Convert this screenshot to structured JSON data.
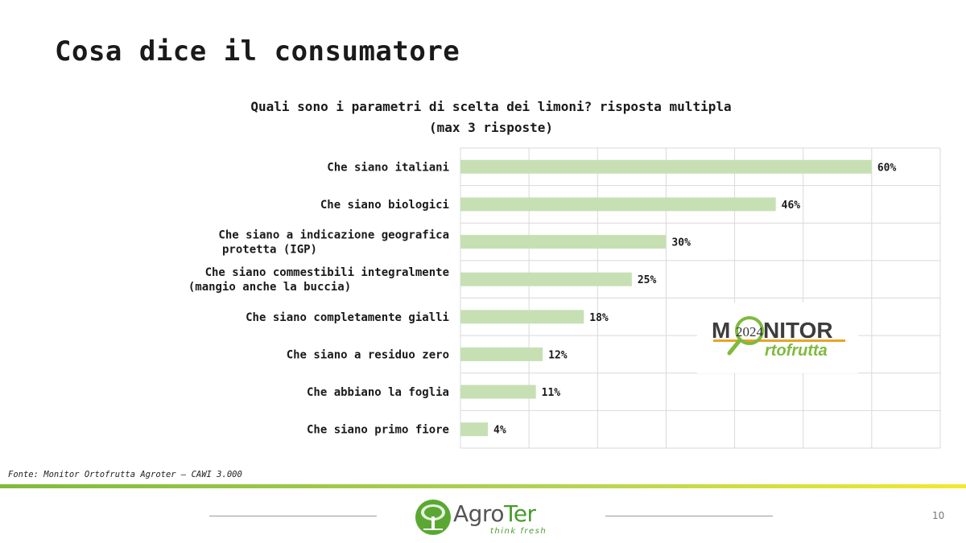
{
  "slide": {
    "title": "Cosa dice il consumatore",
    "source": "Fonte: Monitor Ortofrutta Agroter – CAWI 3.000",
    "page_number": "10"
  },
  "chart_data": {
    "type": "bar",
    "orientation": "horizontal",
    "title_lines": [
      "Quali sono i parametri di scelta dei limoni? risposta multipla",
      "(max 3 risposte)"
    ],
    "categories": [
      "Che siano italiani",
      "Che siano biologici",
      "Che siano a indicazione geografica protetta (IGP)",
      "Che siano commestibili integralmente (mangio anche la buccia)",
      "Che siano completamente gialli",
      "Che siano a residuo zero",
      "Che abbiano la foglia",
      "Che siano primo fiore"
    ],
    "values": [
      60,
      46,
      30,
      25,
      18,
      12,
      11,
      4
    ],
    "value_labels": [
      "60%",
      "46%",
      "30%",
      "25%",
      "18%",
      "12%",
      "11%",
      "4%"
    ],
    "xlim": [
      0,
      70
    ],
    "grid": true,
    "bar_color": "#c6e0b4"
  },
  "logos": {
    "monitor": {
      "word_prefix": "M",
      "year": "2024",
      "word_suffix": "NITOR",
      "sub": "rtofrutta"
    },
    "agroter": {
      "name_a": "Agro",
      "name_b": "Ter",
      "tagline": "think fresh"
    }
  }
}
